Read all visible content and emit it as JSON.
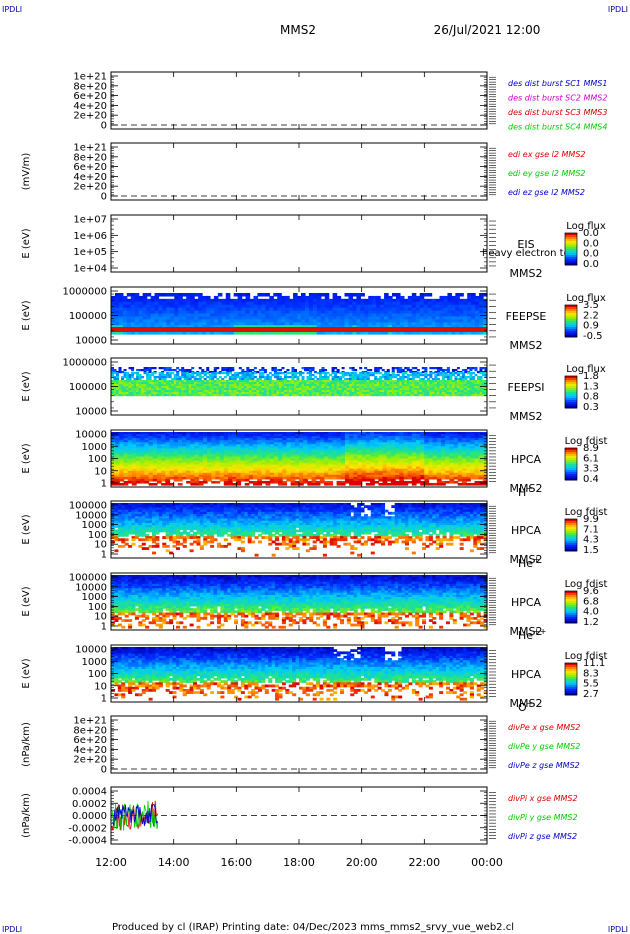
{
  "corner_labels": [
    "IPDLI",
    "IPDLI",
    "IPDLI",
    "IPDLI"
  ],
  "header": {
    "title": "MMS2",
    "datetime": "26/Jul/2021 12:00"
  },
  "footer": {
    "text": "Produced by cl (IRAP)   Printing date: 04/Dec/2023   mms_mms2_srvy_vue_web2.cl"
  },
  "colors": {
    "mms1": "#0000cc",
    "mms2": "#cc00cc",
    "mms3": "#cc0000",
    "mms4": "#00cc00",
    "x": "#dd0000",
    "y": "#00cc00",
    "z": "#0000cc"
  },
  "chart_data": {
    "type": "multi-panel time series",
    "x_axis": {
      "start": "12:00",
      "end": "00:00",
      "tick_labels": [
        "12:00",
        "14:00",
        "16:00",
        "18:00",
        "20:00",
        "22:00",
        "00:00"
      ]
    },
    "panels": [
      {
        "id": "p1",
        "type": "line",
        "ylabel": "",
        "ytick_labels": [
          "1e+21",
          "8e+20",
          "6e+20",
          "4e+20",
          "2e+20",
          "0"
        ],
        "ylim": [
          0,
          1e+21
        ],
        "dashed_zero": true,
        "legend": [
          {
            "text": "des dist burst SC1 MMS1",
            "color": "#0000cc"
          },
          {
            "text": "des dist burst SC2 MMS2",
            "color": "#cc00cc"
          },
          {
            "text": "des dist burst SC3 MMS3",
            "color": "#cc0000"
          },
          {
            "text": "des dist burst SC4 MMS4",
            "color": "#00cc00"
          }
        ]
      },
      {
        "id": "p2",
        "type": "line",
        "ylabel": "(mV/m)",
        "ytick_labels": [
          "1e+21",
          "8e+20",
          "6e+20",
          "4e+20",
          "2e+20",
          "0"
        ],
        "ylim": [
          0,
          1e+21
        ],
        "dashed_zero": true,
        "legend": [
          {
            "text": "edi ex gse l2 MMS2",
            "color": "#dd0000"
          },
          {
            "text": "edi ey gse l2 MMS2",
            "color": "#00cc00"
          },
          {
            "text": "edi ez gse l2 MMS2",
            "color": "#0000cc"
          }
        ]
      },
      {
        "id": "p3",
        "type": "heatmap",
        "ylabel": "E (eV)",
        "ytick_labels": [
          "1e+07",
          "1e+06",
          "1e+05",
          "1e+04"
        ],
        "ylim": [
          10000.0,
          10000000.0
        ],
        "scale": "log",
        "instrument": [
          "EIS",
          "MMS2"
        ],
        "overlay": "heavy electron tof",
        "colorbar": {
          "title": "Log flux",
          "ticks": [
            "0.0",
            "0.0",
            "0.0",
            "0.0"
          ]
        },
        "fill": "empty"
      },
      {
        "id": "p4",
        "type": "heatmap",
        "ylabel": "E (eV)",
        "ytick_labels": [
          "1000000",
          "100000",
          "10000"
        ],
        "ylim": [
          10000.0,
          1000000.0
        ],
        "scale": "log",
        "instrument": [
          "FEEPSE",
          "MMS2"
        ],
        "colorbar": {
          "title": "Log flux",
          "ticks": [
            "3.5",
            "2.2",
            "0.9",
            "-0.5"
          ]
        },
        "fill": "feepse"
      },
      {
        "id": "p5",
        "type": "heatmap",
        "ylabel": "E (eV)",
        "ytick_labels": [
          "1000000",
          "100000",
          "10000"
        ],
        "ylim": [
          10000.0,
          1000000.0
        ],
        "scale": "log",
        "instrument": [
          "FEEPSI",
          "MMS2"
        ],
        "colorbar": {
          "title": "Log flux",
          "ticks": [
            "1.8",
            "1.3",
            "0.8",
            "0.3"
          ]
        },
        "fill": "feepsi"
      },
      {
        "id": "p6",
        "type": "heatmap",
        "ylabel": "E (eV)",
        "ytick_labels": [
          "10000",
          "1000",
          "100",
          "10",
          "1"
        ],
        "ylim": [
          1,
          10000.0
        ],
        "scale": "log",
        "instrument": [
          "HPCA",
          "MMS2"
        ],
        "species": "H",
        "charge": "+",
        "colorbar": {
          "title": "Log fdist",
          "ticks": [
            "8.9",
            "6.1",
            "3.3",
            "0.4"
          ]
        },
        "fill": "hplus"
      },
      {
        "id": "p7",
        "type": "heatmap",
        "ylabel": "E (eV)",
        "ytick_labels": [
          "100000",
          "10000",
          "1000",
          "100",
          "10",
          "1"
        ],
        "ylim": [
          1,
          100000.0
        ],
        "scale": "log",
        "instrument": [
          "HPCA",
          "MMS2"
        ],
        "species": "He",
        "charge": "+",
        "colorbar": {
          "title": "Log fdist",
          "ticks": [
            "9.9",
            "7.1",
            "4.3",
            "1.5"
          ]
        },
        "fill": "heplus"
      },
      {
        "id": "p8",
        "type": "heatmap",
        "ylabel": "E (eV)",
        "ytick_labels": [
          "100000",
          "10000",
          "1000",
          "100",
          "10",
          "1"
        ],
        "ylim": [
          1,
          100000.0
        ],
        "scale": "log",
        "instrument": [
          "HPCA",
          "MMS2"
        ],
        "species": "He",
        "charge": "++",
        "colorbar": {
          "title": "Log fdist",
          "ticks": [
            "9.6",
            "6.8",
            "4.0",
            "1.2"
          ]
        },
        "fill": "hepp"
      },
      {
        "id": "p9",
        "type": "heatmap",
        "ylabel": "E (eV)",
        "ytick_labels": [
          "10000",
          "1000",
          "100",
          "10",
          "1"
        ],
        "ylim": [
          1,
          10000.0
        ],
        "scale": "log",
        "instrument": [
          "HPCA",
          "MMS2"
        ],
        "species": "O",
        "charge": "+",
        "colorbar": {
          "title": "Log fdist",
          "ticks": [
            "11.1",
            "8.3",
            "5.5",
            "2.7"
          ]
        },
        "fill": "oplus"
      },
      {
        "id": "p10",
        "type": "line",
        "ylabel": "(nPa/km)",
        "ytick_labels": [
          "1e+21",
          "8e+20",
          "6e+20",
          "4e+20",
          "2e+20",
          "0"
        ],
        "ylim": [
          0,
          1e+21
        ],
        "dashed_zero": true,
        "legend": [
          {
            "text": "divPe x gse MMS2",
            "color": "#dd0000"
          },
          {
            "text": "divPe y gse MMS2",
            "color": "#00cc00"
          },
          {
            "text": "divPe z gse MMS2",
            "color": "#0000cc"
          }
        ]
      },
      {
        "id": "p11",
        "type": "line",
        "ylabel": "(nPa/km)",
        "ytick_labels": [
          "0.0004",
          "0.0002",
          "0.0000",
          "-0.0002",
          "-0.0004"
        ],
        "ylim": [
          -0.0004,
          0.0004
        ],
        "dashed_zero": true,
        "data_end": "13:30",
        "legend": [
          {
            "text": "divPi x gse MMS2",
            "color": "#dd0000"
          },
          {
            "text": "divPi y gse MMS2",
            "color": "#00cc00"
          },
          {
            "text": "divPi z gse MMS2",
            "color": "#0000cc"
          }
        ]
      }
    ]
  }
}
